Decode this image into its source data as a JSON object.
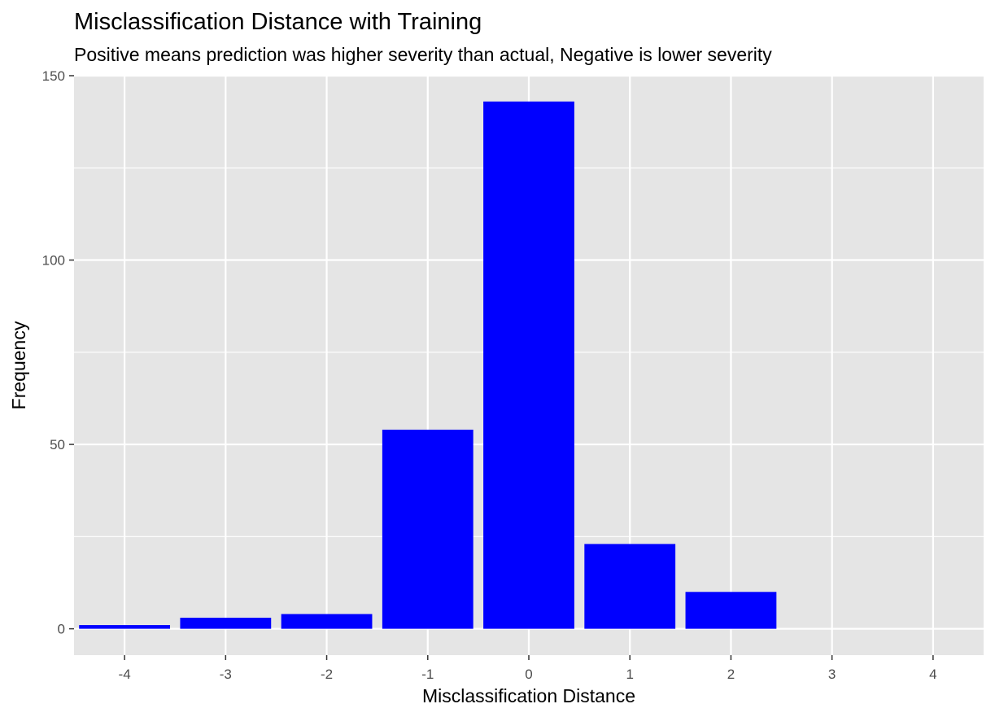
{
  "chart_data": {
    "type": "bar",
    "title": "Misclassification Distance with Training",
    "subtitle": "Positive means prediction was higher severity than actual, Negative is lower severity",
    "xlabel": "Misclassification Distance",
    "ylabel": "Frequency",
    "categories": [
      "-4",
      "-3",
      "-2",
      "-1",
      "0",
      "1",
      "2",
      "3",
      "4"
    ],
    "x": [
      -4,
      -3,
      -2,
      -1,
      0,
      1,
      2,
      3,
      4
    ],
    "values": [
      1,
      3,
      4,
      54,
      143,
      23,
      10,
      0,
      0
    ],
    "xlim": [
      -4.5,
      4.5
    ],
    "ylim": [
      -7.15,
      150
    ],
    "x_ticks": [
      "-4",
      "-3",
      "-2",
      "-1",
      "0",
      "1",
      "2",
      "3",
      "4"
    ],
    "y_ticks": [
      "0",
      "50",
      "100",
      "150"
    ],
    "y_tick_values": [
      0,
      50,
      100,
      150
    ],
    "bar_color": "#0000ff",
    "panel_background": "#e5e5e5",
    "grid_color": "#ffffff",
    "grid": true,
    "legend": "none"
  }
}
